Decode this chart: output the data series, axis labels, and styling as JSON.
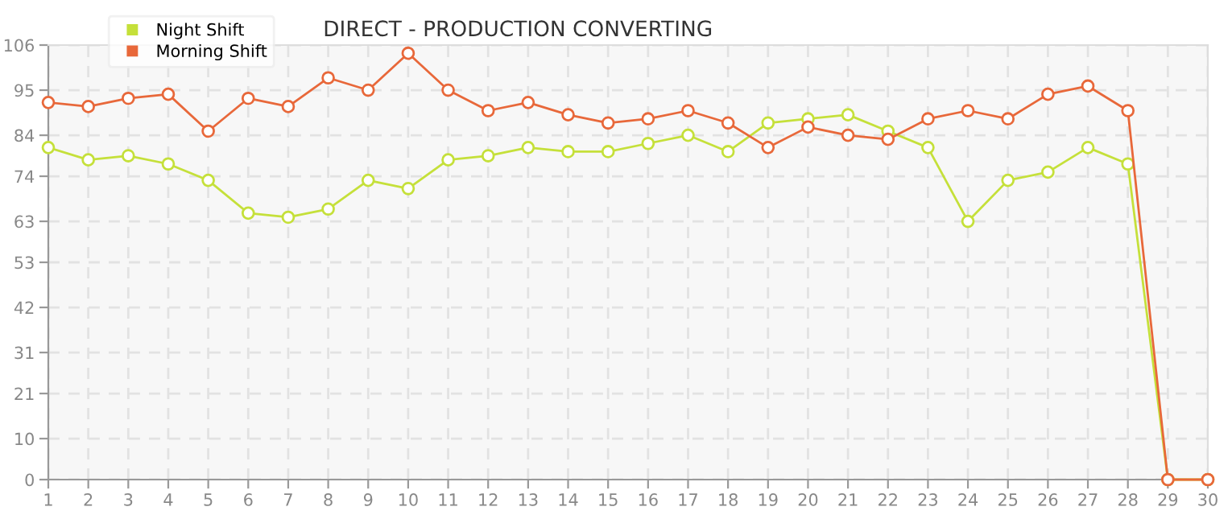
{
  "chart_data": {
    "type": "line",
    "title": "DIRECT - PRODUCTION CONVERTING",
    "x": [
      1,
      2,
      3,
      4,
      5,
      6,
      7,
      8,
      9,
      10,
      11,
      12,
      13,
      14,
      15,
      16,
      17,
      18,
      19,
      20,
      21,
      22,
      23,
      24,
      25,
      26,
      27,
      28,
      29,
      30
    ],
    "series": [
      {
        "name": "Night Shift",
        "color": "#c5e03a",
        "values": [
          81,
          78,
          79,
          77,
          73,
          65,
          64,
          66,
          73,
          71,
          78,
          79,
          81,
          80,
          80,
          82,
          84,
          80,
          87,
          88,
          89,
          85,
          81,
          63,
          73,
          75,
          81,
          77,
          0,
          0
        ]
      },
      {
        "name": "Morning Shift",
        "color": "#e8683a",
        "values": [
          92,
          91,
          93,
          94,
          85,
          93,
          91,
          98,
          95,
          104,
          95,
          90,
          92,
          89,
          87,
          88,
          90,
          87,
          81,
          86,
          84,
          83,
          88,
          90,
          88,
          94,
          96,
          90,
          0,
          0
        ]
      }
    ],
    "xlim": [
      1,
      30
    ],
    "xticks": [
      1,
      2,
      3,
      4,
      5,
      6,
      7,
      8,
      9,
      10,
      11,
      12,
      13,
      14,
      15,
      16,
      17,
      18,
      19,
      20,
      21,
      22,
      23,
      24,
      25,
      26,
      27,
      28,
      29,
      30
    ],
    "ylim": [
      0,
      106
    ],
    "yticks": [
      0,
      10,
      21,
      31,
      42,
      53,
      63,
      74,
      84,
      95,
      106
    ],
    "grid": true,
    "legend": "top left",
    "marker": "circle",
    "line_style": "solid"
  }
}
